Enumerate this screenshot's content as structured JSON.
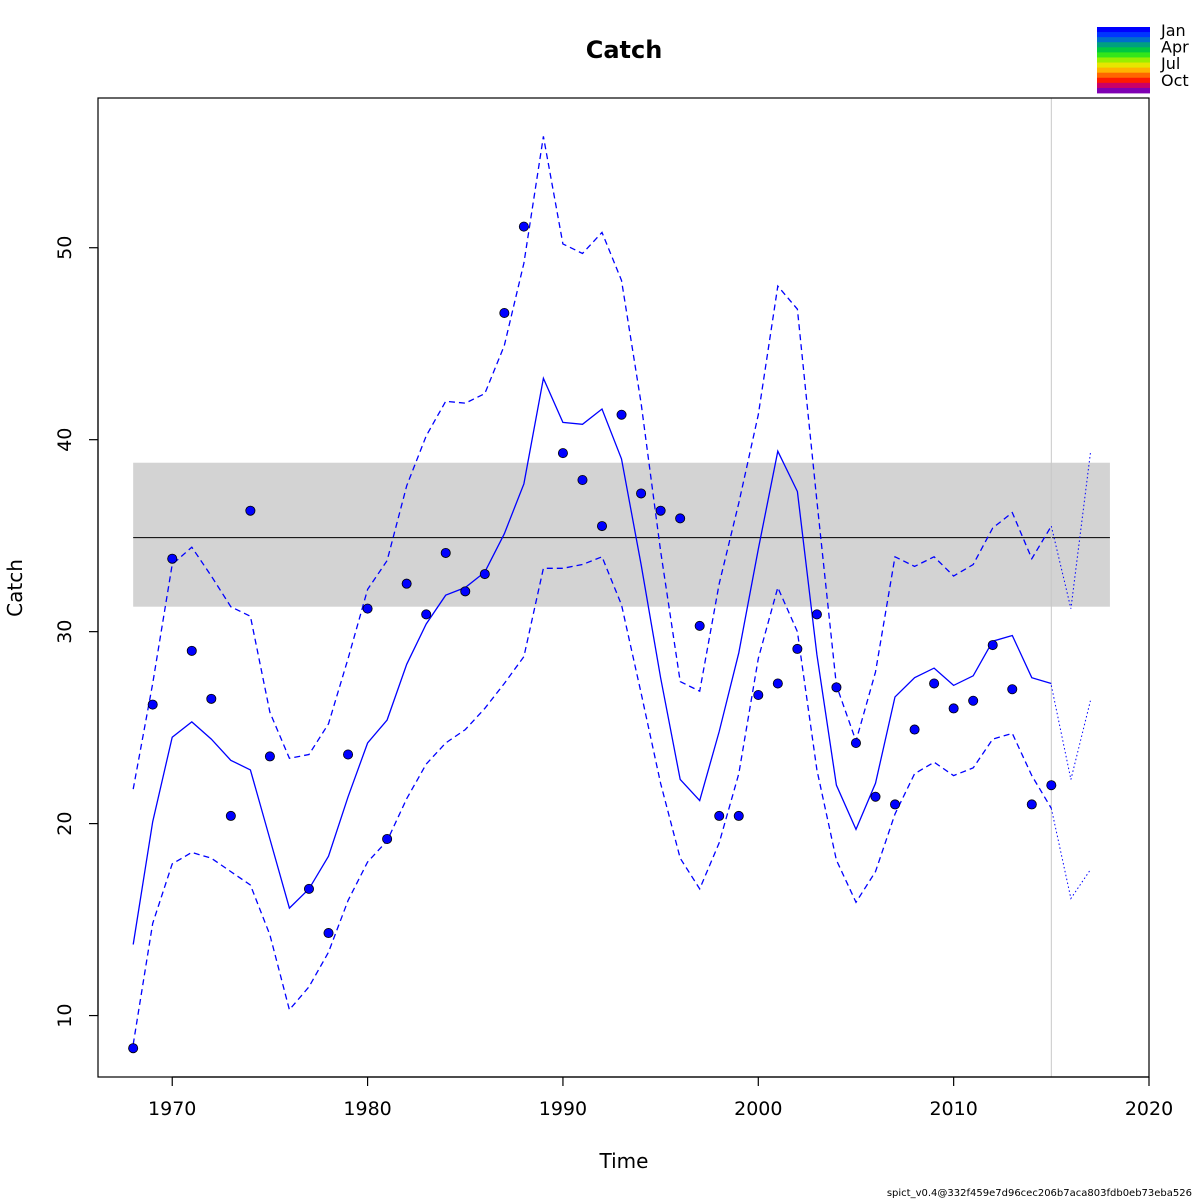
{
  "chart_data": {
    "type": "line",
    "title": "Catch",
    "xlabel": "Time",
    "ylabel": "Catch",
    "xlim": [
      1966.2,
      2020
    ],
    "ylim": [
      6.8,
      57.8
    ],
    "x_ticks": [
      "1970",
      "1980",
      "1990",
      "2000",
      "2010",
      "2020"
    ],
    "y_ticks": [
      "10",
      "20",
      "30",
      "40",
      "50"
    ],
    "grid": false,
    "reference_band": {
      "lower": 31.3,
      "upper": 38.8,
      "mid": 34.9,
      "x_range": [
        1968,
        2018
      ],
      "color": "#d3d3d3"
    },
    "forecast_start": 2015,
    "line_color": "#0000ff",
    "point_color": "#0000ff",
    "legend": {
      "position": "top-right",
      "labels": [
        "Jan",
        "Apr",
        "Jul",
        "Oct"
      ]
    },
    "observed": {
      "x": [
        1968,
        1969,
        1970,
        1971,
        1972,
        1973,
        1974,
        1975,
        1976,
        1977,
        1978,
        1979,
        1980,
        1981,
        1982,
        1983,
        1984,
        1985,
        1986,
        1987,
        1988,
        1989,
        1990,
        1991,
        1992,
        1993,
        1994,
        1995,
        1996,
        1997,
        1998,
        1999,
        2000,
        2001,
        2002,
        2003,
        2004,
        2005,
        2006,
        2007,
        2008,
        2009,
        2010,
        2011,
        2012,
        2013,
        2014,
        2015
      ],
      "y": [
        8.3,
        26.2,
        33.8,
        29.0,
        26.5,
        20.4,
        36.3,
        23.5,
        null,
        16.6,
        14.3,
        23.6,
        31.2,
        19.2,
        32.5,
        30.9,
        34.1,
        32.1,
        33.0,
        46.6,
        51.1,
        null,
        39.3,
        37.9,
        35.5,
        41.3,
        37.2,
        36.3,
        35.9,
        30.3,
        20.4,
        20.4,
        26.7,
        27.3,
        29.1,
        30.9,
        27.1,
        24.2,
        21.4,
        21.0,
        24.9,
        27.3,
        26.0,
        26.4,
        29.3,
        27.0,
        21.0,
        22.0
      ]
    },
    "series": [
      {
        "x": [
          1968,
          1969,
          1970,
          1971,
          1972,
          1973,
          1974,
          1975,
          1976,
          1977,
          1978,
          1979,
          1980,
          1981,
          1982,
          1983,
          1984,
          1985,
          1986,
          1987,
          1988,
          1989,
          1990,
          1991,
          1992,
          1993,
          1994,
          1995,
          1996,
          1997,
          1998,
          1999,
          2000,
          2001,
          2002,
          2003,
          2004,
          2005,
          2006,
          2007,
          2008,
          2009,
          2010,
          2011,
          2012,
          2013,
          2014,
          2015
        ],
        "y": [
          13.7,
          20.1,
          24.5,
          25.3,
          24.4,
          23.3,
          22.8,
          19.2,
          15.6,
          16.6,
          18.3,
          21.4,
          24.2,
          25.4,
          28.3,
          30.4,
          31.9,
          32.3,
          33.1,
          35.1,
          37.7,
          43.2,
          40.9,
          40.8,
          41.6,
          39.0,
          33.5,
          27.6,
          22.3,
          21.2,
          24.8,
          28.9,
          34.3,
          39.4,
          37.3,
          28.8,
          22.0,
          19.7,
          22.1,
          26.6,
          27.6,
          28.1,
          27.2,
          27.7,
          29.5,
          29.8,
          27.6,
          27.3
        ],
        "style": "solid"
      },
      {
        "x": [
          1968,
          1969,
          1970,
          1971,
          1972,
          1973,
          1974,
          1975,
          1976,
          1977,
          1978,
          1979,
          1980,
          1981,
          1982,
          1983,
          1984,
          1985,
          1986,
          1987,
          1988,
          1989,
          1990,
          1991,
          1992,
          1993,
          1994,
          1995,
          1996,
          1997,
          1998,
          1999,
          2000,
          2001,
          2002,
          2003,
          2004,
          2005,
          2006,
          2007,
          2008,
          2009,
          2010,
          2011,
          2012,
          2013,
          2014,
          2015
        ],
        "y": [
          21.8,
          27.3,
          33.5,
          34.4,
          32.9,
          31.3,
          30.8,
          25.8,
          23.4,
          23.6,
          25.2,
          28.6,
          32.2,
          33.7,
          37.6,
          40.2,
          42.0,
          41.9,
          42.4,
          44.9,
          49.2,
          55.8,
          50.2,
          49.7,
          50.8,
          48.3,
          41.9,
          34.2,
          27.4,
          26.9,
          32.5,
          36.7,
          41.3,
          48.0,
          46.8,
          36.8,
          27.2,
          24.3,
          27.9,
          33.9,
          33.4,
          33.9,
          32.9,
          33.5,
          35.4,
          36.2,
          33.8,
          35.5
        ],
        "style": "dashed"
      },
      {
        "x": [
          1968,
          1969,
          1970,
          1971,
          1972,
          1973,
          1974,
          1975,
          1976,
          1977,
          1978,
          1979,
          1980,
          1981,
          1982,
          1983,
          1984,
          1985,
          1986,
          1987,
          1988,
          1989,
          1990,
          1991,
          1992,
          1993,
          1994,
          1995,
          1996,
          1997,
          1998,
          1999,
          2000,
          2001,
          2002,
          2003,
          2004,
          2005,
          2006,
          2007,
          2008,
          2009,
          2010,
          2011,
          2012,
          2013,
          2014,
          2015
        ],
        "y": [
          8.5,
          14.8,
          17.9,
          18.5,
          18.2,
          17.5,
          16.8,
          14.2,
          10.3,
          11.5,
          13.3,
          16.0,
          18.0,
          19.1,
          21.3,
          23.1,
          24.2,
          24.9,
          26.0,
          27.3,
          28.7,
          33.3,
          33.3,
          33.5,
          33.9,
          31.4,
          26.8,
          22.1,
          18.2,
          16.6,
          19.0,
          22.6,
          28.6,
          32.3,
          30.0,
          22.8,
          18.1,
          15.9,
          17.5,
          20.5,
          22.6,
          23.2,
          22.5,
          22.9,
          24.4,
          24.7,
          22.5,
          20.8
        ],
        "style": "dashed"
      },
      {
        "x": [
          2015,
          2016,
          2017
        ],
        "y": [
          27.2,
          22.3,
          26.4
        ],
        "style": "dotted"
      },
      {
        "x": [
          2015,
          2016,
          2017
        ],
        "y": [
          35.5,
          31.2,
          39.3
        ],
        "style": "dotted"
      },
      {
        "x": [
          2015,
          2016,
          2017
        ],
        "y": [
          20.8,
          16.1,
          17.6
        ],
        "style": "dotted"
      }
    ]
  },
  "footer": {
    "version_stamp": "spict_v0.4@332f459e7d96cec206b7aca803fdb0eb73eba526"
  }
}
